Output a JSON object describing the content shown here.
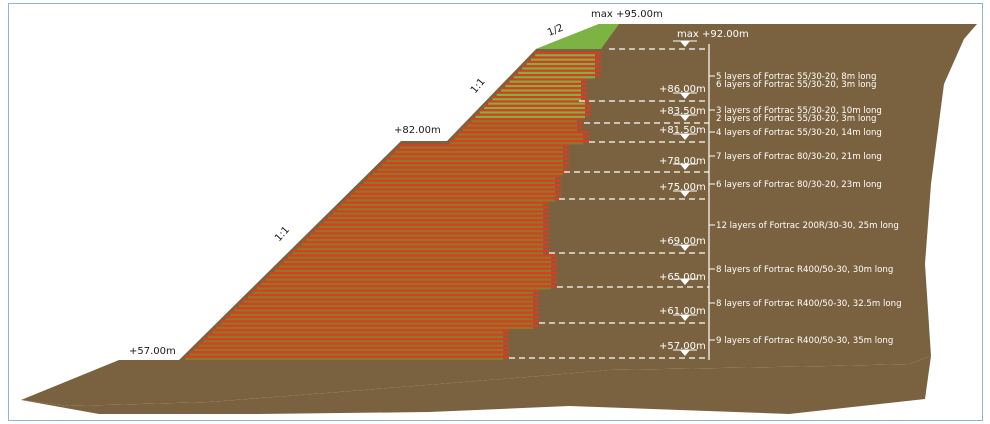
{
  "diagram": {
    "colors": {
      "soil": "#7a6240",
      "reinforcement_red": "#e23a1e",
      "reinforcement_olive": "#8a7a2a",
      "vegetation_green": "#7cb342",
      "annotation_white": "#ffffff"
    },
    "elevations": {
      "crest": "max +95.00m",
      "top_level": "max +92.00m",
      "e86": "+86.00m",
      "e835": "+83.50m",
      "e815": "+81.50m",
      "e78": "+78.00m",
      "e75": "+75.00m",
      "e69": "+69.00m",
      "e65": "+65.00m",
      "e61": "+61.00m",
      "e57": "+57.00m",
      "berm": "+82.00m",
      "toe": "+57.00m"
    },
    "slopes": {
      "top": "1/2",
      "upper": "1:1",
      "lower": "1:1"
    },
    "layers": [
      {
        "text": "5 layers of Fortrac 55/30-20, 8m long"
      },
      {
        "text": "6 layers of Fortrac 55/30-20, 3m long"
      },
      {
        "text": "3 layers of Fortrac 55/30-20, 10m long"
      },
      {
        "text": "2 layers of Fortrac 55/30-20, 3m long"
      },
      {
        "text": "4 layers of Fortrac 55/30-20, 14m long"
      },
      {
        "text": "7 layers of Fortrac 80/30-20, 21m long"
      },
      {
        "text": "6 layers of Fortrac 80/30-20, 23m long"
      },
      {
        "text": "12 layers of Fortrac 200R/30-30, 25m long"
      },
      {
        "text": "8 layers of Fortrac R400/50-30, 30m long"
      },
      {
        "text": "8 layers of Fortrac R400/50-30, 32.5m long"
      },
      {
        "text": "9 layers of Fortrac R400/50-30, 35m long"
      }
    ]
  }
}
